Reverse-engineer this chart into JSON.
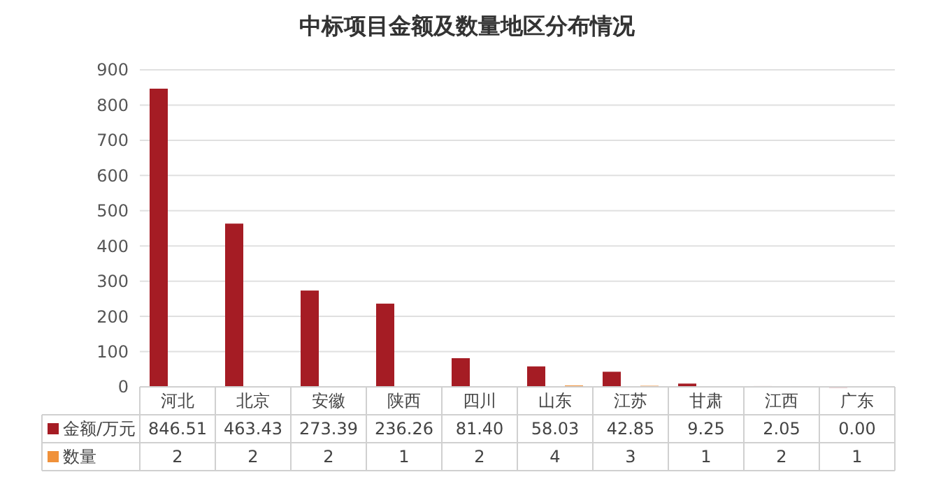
{
  "chart_data": {
    "type": "bar",
    "title": "中标项目金额及数量地区分布情况",
    "categories": [
      "河北",
      "北京",
      "安徽",
      "陕西",
      "四川",
      "山东",
      "江苏",
      "甘肃",
      "江西",
      "广东"
    ],
    "series": [
      {
        "name": "金额/万元",
        "color": "#a51c24",
        "values": [
          846.51,
          463.43,
          273.39,
          236.26,
          81.4,
          58.03,
          42.85,
          9.25,
          2.05,
          0.0
        ],
        "value_labels": [
          "846.51",
          "463.43",
          "273.39",
          "236.26",
          "81.40",
          "58.03",
          "42.85",
          "9.25",
          "2.05",
          "0.00"
        ]
      },
      {
        "name": "数量",
        "color": "#f0913a",
        "values": [
          2,
          2,
          2,
          1,
          2,
          4,
          3,
          1,
          2,
          1
        ],
        "value_labels": [
          "2",
          "2",
          "2",
          "1",
          "2",
          "4",
          "3",
          "1",
          "2",
          "1"
        ]
      }
    ],
    "ylim": [
      0,
      900
    ],
    "yticks": [
      0,
      100,
      200,
      300,
      400,
      500,
      600,
      700,
      800,
      900
    ],
    "grid": "y",
    "legend": "bottom"
  }
}
